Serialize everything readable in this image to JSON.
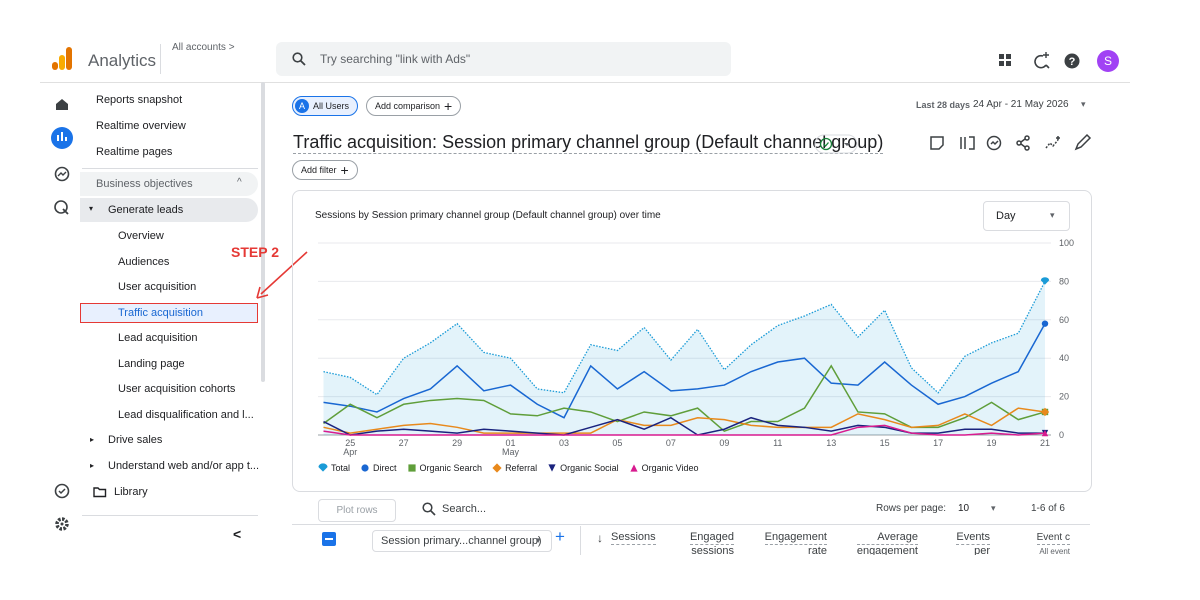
{
  "header": {
    "brand": "Analytics",
    "account": "All accounts >",
    "search_placeholder": "Try searching \"link with Ads\"",
    "avatar": "S"
  },
  "nav": {
    "top": [
      "Reports snapshot",
      "Realtime overview",
      "Realtime pages"
    ],
    "section": "Business objectives",
    "group": "Generate leads",
    "group_items": [
      "Overview",
      "Audiences",
      "User acquisition",
      "Traffic acquisition",
      "Lead acquisition",
      "Landing page",
      "User acquisition cohorts",
      "Lead disqualification and l..."
    ],
    "others": [
      "Drive sales",
      "Understand web and/or app t..."
    ],
    "library": "Library",
    "collapse": "<"
  },
  "annotation": "STEP 2",
  "toolbar": {
    "segment_badge": "A",
    "segment": "All Users",
    "add_comparison": "Add comparison",
    "date_label": "Last 28 days",
    "date_range": "24 Apr - 21 May 2026"
  },
  "page_title": "Traffic acquisition: Session primary channel group (Default channel group)",
  "add_filter": "Add filter",
  "chart_data": {
    "type": "line",
    "title": "Sessions by Session primary channel group (Default channel group) over time",
    "interval": "Day",
    "categories": [
      null,
      "25 Apr",
      null,
      "27",
      null,
      "29",
      null,
      "01 May",
      null,
      "03",
      null,
      "05",
      null,
      "07",
      null,
      "09",
      null,
      "11",
      null,
      "13",
      null,
      "15",
      null,
      "17",
      null,
      "19",
      null,
      "21"
    ],
    "ylim": [
      0,
      100
    ],
    "yticks": [
      0,
      20,
      40,
      60,
      80,
      100
    ],
    "grid": true,
    "y_axis_side": "right",
    "series": [
      {
        "name": "Total",
        "color": "#1a9bd7",
        "marker": "pin",
        "area": true,
        "dotted": true,
        "values": [
          33,
          30,
          21,
          40,
          48,
          58,
          43,
          40,
          24,
          22,
          47,
          44,
          56,
          39,
          55,
          34,
          47,
          57,
          62,
          68,
          51,
          65,
          35,
          22,
          41,
          48,
          53,
          80
        ]
      },
      {
        "name": "Direct",
        "color": "#1967d2",
        "marker": "circle",
        "values": [
          17,
          15,
          12,
          19,
          24,
          36,
          23,
          26,
          16,
          9,
          36,
          24,
          33,
          23,
          24,
          26,
          33,
          38,
          40,
          27,
          26,
          38,
          26,
          16,
          20,
          27,
          33,
          58
        ]
      },
      {
        "name": "Organic Search",
        "color": "#5f9e3a",
        "marker": "square",
        "values": [
          6,
          16,
          9,
          16,
          18,
          19,
          18,
          11,
          10,
          14,
          12,
          7,
          12,
          10,
          14,
          2,
          7,
          7,
          14,
          36,
          12,
          11,
          4,
          4,
          9,
          17,
          8,
          12
        ]
      },
      {
        "name": "Referral",
        "color": "#e8891c",
        "marker": "diamond",
        "values": [
          4,
          1,
          3,
          5,
          6,
          4,
          1,
          1,
          1,
          1,
          1,
          8,
          5,
          5,
          9,
          8,
          5,
          4,
          4,
          4,
          11,
          8,
          4,
          5,
          11,
          5,
          14,
          12
        ]
      },
      {
        "name": "Organic Social",
        "color": "#1a237e",
        "marker": "triangle-down",
        "values": [
          7,
          0,
          2,
          3,
          2,
          1,
          3,
          2,
          1,
          0,
          4,
          8,
          3,
          9,
          0,
          3,
          9,
          5,
          4,
          2,
          5,
          4,
          1,
          1,
          3,
          3,
          1,
          1
        ]
      },
      {
        "name": "Organic Video",
        "color": "#d81b8f",
        "marker": "triangle-up",
        "values": [
          2,
          0,
          0,
          0,
          0,
          0,
          0,
          0,
          0,
          0,
          0,
          0,
          0,
          0,
          0,
          0,
          0,
          0,
          0,
          0,
          4,
          5,
          1,
          0,
          0,
          1,
          0,
          1
        ]
      }
    ]
  },
  "table": {
    "plot_rows": "Plot rows",
    "search": "Search...",
    "rows_per_page_label": "Rows per page:",
    "rows_per_page": "10",
    "pagination": "1-6 of 6",
    "dimension": "Session primary...channel group)",
    "columns": [
      [
        "Sessions"
      ],
      [
        "Engaged",
        "sessions"
      ],
      [
        "Engagement",
        "rate"
      ],
      [
        "Average",
        "engagement"
      ],
      [
        "Events",
        "per"
      ],
      [
        "Event c",
        "All event"
      ]
    ]
  }
}
